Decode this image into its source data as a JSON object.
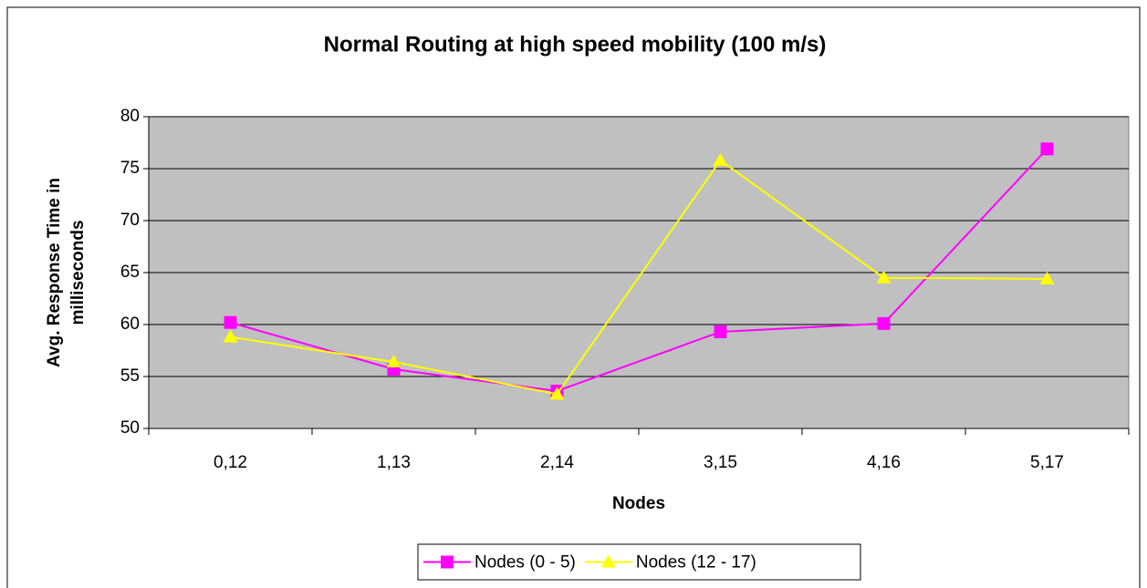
{
  "chart_data": {
    "type": "line",
    "title": "Normal Routing at high speed mobility (100 m/s)",
    "x_label": "Nodes",
    "y_label": [
      "Avg. Response Time in",
      "milliseconds"
    ],
    "categories": [
      "0,12",
      "1,13",
      "2,14",
      "3,15",
      "4,16",
      "5,17"
    ],
    "series": [
      {
        "name": "Nodes (0 - 5)",
        "color": "#ff00ff",
        "marker": "square",
        "values": [
          60.2,
          55.7,
          53.6,
          59.3,
          60.1,
          76.9
        ]
      },
      {
        "name": "Nodes (12 - 17)",
        "color": "#ffff00",
        "marker": "triangle",
        "values": [
          58.8,
          56.4,
          53.3,
          75.8,
          64.5,
          64.4
        ]
      }
    ],
    "ylim": [
      50,
      80
    ],
    "yticks": [
      50,
      55,
      60,
      65,
      70,
      75,
      80
    ],
    "grid": true,
    "legend": "bottom"
  }
}
